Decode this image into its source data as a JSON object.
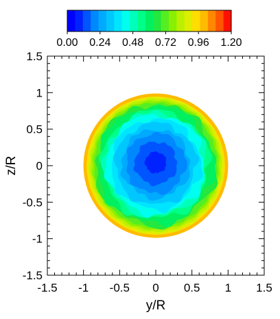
{
  "chart_data": {
    "type": "heatmap",
    "title": "",
    "xlabel": "y/R",
    "ylabel": "z/R",
    "xlim": [
      -1.5,
      1.5
    ],
    "ylim": [
      -1.5,
      1.5
    ],
    "x_ticks": [
      "-1.5",
      "-1",
      "-0.5",
      "0",
      "0.5",
      "1",
      "1.5"
    ],
    "y_ticks": [
      "1.5",
      "1",
      "0.5",
      "0",
      "-0.5",
      "-1",
      "-1.5"
    ],
    "grid": false,
    "domain": "circle of radius 1 centred at (0, 0)",
    "field": {
      "radial_profile": [
        {
          "r": 0.0,
          "value": 0.08
        },
        {
          "r": 0.2,
          "value": 0.12
        },
        {
          "r": 0.4,
          "value": 0.22
        },
        {
          "r": 0.6,
          "value": 0.36
        },
        {
          "r": 0.75,
          "value": 0.55
        },
        {
          "r": 0.85,
          "value": 0.72
        },
        {
          "r": 0.95,
          "value": 0.92
        },
        {
          "r": 1.0,
          "value": 1.02
        }
      ],
      "min_region_center": [
        0.0,
        0.05
      ]
    },
    "colorbar": {
      "min": 0.0,
      "max": 1.2,
      "levels": 21,
      "tick_labels": [
        "0.00",
        "0.24",
        "0.48",
        "0.72",
        "0.96",
        "1.20"
      ],
      "location": "top",
      "colors": [
        "#0000ff",
        "#0022ff",
        "#0055ff",
        "#0088ff",
        "#00aaff",
        "#00c8ff",
        "#00e5ff",
        "#00ffee",
        "#00ffbb",
        "#00ff88",
        "#00f060",
        "#22e840",
        "#55ee22",
        "#88f000",
        "#bbf000",
        "#ddee00",
        "#ffdd00",
        "#ffbb00",
        "#ff8800",
        "#ff5500",
        "#ff1100"
      ]
    }
  }
}
